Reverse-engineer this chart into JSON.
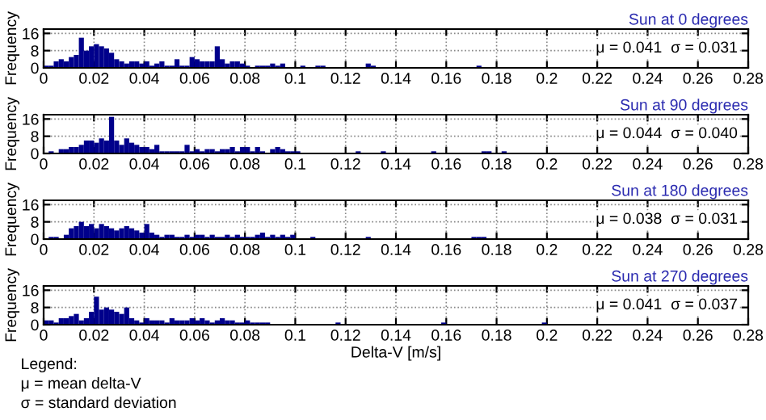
{
  "chart_data": [
    {
      "type": "histogram",
      "title": "Sun at 0 degrees",
      "ylabel": "Frequency",
      "color": "#00008b",
      "bins": [
        0,
        0.002,
        0.004,
        0.006,
        0.008,
        0.01,
        0.012,
        0.014,
        0.016,
        0.018,
        0.02,
        0.022,
        0.024,
        0.026,
        0.028,
        0.03,
        0.032,
        0.034,
        0.036,
        0.038,
        0.04,
        0.042,
        0.044,
        0.046,
        0.048,
        0.05,
        0.052,
        0.054,
        0.056,
        0.058,
        0.06,
        0.062,
        0.064,
        0.066,
        0.068,
        0.07,
        0.072,
        0.074,
        0.076,
        0.078,
        0.08,
        0.082,
        0.084,
        0.086,
        0.088,
        0.09,
        0.092,
        0.094,
        0.096,
        0.098,
        0.1,
        0.102,
        0.104,
        0.106,
        0.108,
        0.11,
        0.112,
        0.114,
        0.116,
        0.118,
        0.12,
        0.122,
        0.124,
        0.126,
        0.128,
        0.13,
        0.132,
        0.134,
        0.136,
        0.138,
        0.14,
        0.142,
        0.144,
        0.146,
        0.148,
        0.15,
        0.152,
        0.154,
        0.156,
        0.158,
        0.16,
        0.162,
        0.164,
        0.166,
        0.168,
        0.17,
        0.172,
        0.174,
        0.176,
        0.178,
        0.18,
        0.182,
        0.184,
        0.186,
        0.188,
        0.19,
        0.192,
        0.194,
        0.196,
        0.198,
        0.2
      ],
      "values": [
        1,
        1,
        3,
        4,
        3,
        5,
        6,
        14,
        8,
        10,
        11,
        10,
        9,
        7,
        4,
        3,
        2,
        3,
        3,
        2,
        3,
        1,
        2,
        3,
        1,
        1,
        4,
        1,
        1,
        5,
        4,
        3,
        3,
        3,
        10,
        4,
        2,
        3,
        3,
        2,
        1,
        0,
        1,
        1,
        1,
        2,
        1,
        2,
        0,
        0,
        0,
        1,
        0,
        0,
        1,
        1,
        0,
        0,
        0,
        0,
        0,
        0,
        0,
        0,
        2,
        1,
        0,
        0,
        0,
        0,
        0,
        0,
        0,
        0,
        0,
        0,
        0,
        0,
        0,
        0,
        0,
        0,
        0,
        0,
        0,
        0,
        1,
        0,
        0,
        0,
        0,
        0,
        0,
        0,
        0,
        0,
        0,
        0,
        0,
        0
      ],
      "xlim": [
        0,
        0.28
      ],
      "ylim": [
        0,
        18
      ],
      "xticks": [
        0,
        0.02,
        0.04,
        0.06,
        0.08,
        0.1,
        0.12,
        0.14,
        0.16,
        0.18,
        0.2,
        0.22,
        0.24,
        0.26,
        0.28
      ],
      "yticks": [
        0,
        8,
        16
      ],
      "grid": true,
      "annotations": [
        "μ = 0.041  σ = 0.031"
      ]
    },
    {
      "type": "histogram",
      "title": "Sun at 90 degrees",
      "ylabel": "Frequency",
      "color": "#00008b",
      "bins": [
        0,
        0.002,
        0.004,
        0.006,
        0.008,
        0.01,
        0.012,
        0.014,
        0.016,
        0.018,
        0.02,
        0.022,
        0.024,
        0.026,
        0.028,
        0.03,
        0.032,
        0.034,
        0.036,
        0.038,
        0.04,
        0.042,
        0.044,
        0.046,
        0.048,
        0.05,
        0.052,
        0.054,
        0.056,
        0.058,
        0.06,
        0.062,
        0.064,
        0.066,
        0.068,
        0.07,
        0.072,
        0.074,
        0.076,
        0.078,
        0.08,
        0.082,
        0.084,
        0.086,
        0.088,
        0.09,
        0.092,
        0.094,
        0.096,
        0.098,
        0.1,
        0.102,
        0.104,
        0.106,
        0.108,
        0.11,
        0.112,
        0.114,
        0.116,
        0.118,
        0.12,
        0.122,
        0.124,
        0.126,
        0.128,
        0.13,
        0.132,
        0.134,
        0.136,
        0.138,
        0.14,
        0.142,
        0.144,
        0.146,
        0.148,
        0.15,
        0.152,
        0.154,
        0.156,
        0.158,
        0.16,
        0.162,
        0.164,
        0.166,
        0.168,
        0.17,
        0.172,
        0.174,
        0.176,
        0.178,
        0.18,
        0.182,
        0.184,
        0.186,
        0.188,
        0.19,
        0.192,
        0.194,
        0.196,
        0.198,
        0.2
      ],
      "values": [
        0,
        1,
        0,
        2,
        2,
        3,
        3,
        4,
        6,
        6,
        5,
        7,
        6,
        17,
        6,
        4,
        7,
        5,
        4,
        3,
        3,
        2,
        4,
        1,
        1,
        1,
        1,
        1,
        4,
        1,
        2,
        1,
        2,
        2,
        1,
        2,
        2,
        3,
        1,
        3,
        3,
        1,
        3,
        1,
        0,
        2,
        3,
        2,
        1,
        1,
        1,
        0,
        0,
        0,
        0,
        0,
        0,
        0,
        0,
        0,
        0,
        0,
        1,
        0,
        0,
        0,
        0,
        1,
        0,
        0,
        0,
        0,
        0,
        0,
        0,
        0,
        0,
        1,
        0,
        0,
        0,
        0,
        0,
        0,
        0,
        0,
        0,
        1,
        1,
        0,
        0,
        1,
        0,
        0,
        0,
        0,
        0,
        0,
        0,
        0
      ],
      "xlim": [
        0,
        0.28
      ],
      "ylim": [
        0,
        18
      ],
      "xticks": [
        0,
        0.02,
        0.04,
        0.06,
        0.08,
        0.1,
        0.12,
        0.14,
        0.16,
        0.18,
        0.2,
        0.22,
        0.24,
        0.26,
        0.28
      ],
      "yticks": [
        0,
        8,
        16
      ],
      "grid": true,
      "annotations": [
        "μ = 0.044  σ = 0.040"
      ]
    },
    {
      "type": "histogram",
      "title": "Sun at 180 degrees",
      "ylabel": "Frequency",
      "color": "#00008b",
      "bins": [
        0,
        0.002,
        0.004,
        0.006,
        0.008,
        0.01,
        0.012,
        0.014,
        0.016,
        0.018,
        0.02,
        0.022,
        0.024,
        0.026,
        0.028,
        0.03,
        0.032,
        0.034,
        0.036,
        0.038,
        0.04,
        0.042,
        0.044,
        0.046,
        0.048,
        0.05,
        0.052,
        0.054,
        0.056,
        0.058,
        0.06,
        0.062,
        0.064,
        0.066,
        0.068,
        0.07,
        0.072,
        0.074,
        0.076,
        0.078,
        0.08,
        0.082,
        0.084,
        0.086,
        0.088,
        0.09,
        0.092,
        0.094,
        0.096,
        0.098,
        0.1,
        0.102,
        0.104,
        0.106,
        0.108,
        0.11,
        0.112,
        0.114,
        0.116,
        0.118,
        0.12,
        0.122,
        0.124,
        0.126,
        0.128,
        0.13,
        0.132,
        0.134,
        0.136,
        0.138,
        0.14,
        0.142,
        0.144,
        0.146,
        0.148,
        0.15,
        0.152,
        0.154,
        0.156,
        0.158,
        0.16,
        0.162,
        0.164,
        0.166,
        0.168,
        0.17,
        0.172,
        0.174,
        0.176,
        0.178,
        0.18,
        0.182,
        0.184,
        0.186,
        0.188,
        0.19,
        0.192,
        0.194,
        0.196,
        0.198,
        0.2
      ],
      "values": [
        0,
        1,
        1,
        0,
        2,
        5,
        6,
        8,
        6,
        7,
        5,
        7,
        6,
        5,
        4,
        5,
        6,
        5,
        4,
        3,
        7,
        3,
        2,
        1,
        2,
        2,
        1,
        1,
        2,
        1,
        2,
        2,
        1,
        2,
        1,
        1,
        2,
        1,
        2,
        1,
        1,
        1,
        2,
        3,
        1,
        2,
        1,
        2,
        1,
        2,
        0,
        0,
        0,
        1,
        0,
        0,
        0,
        0,
        0,
        0,
        0,
        0,
        0,
        0,
        1,
        0,
        0,
        0,
        0,
        0,
        0,
        0,
        0,
        0,
        0,
        0,
        0,
        0,
        0,
        0,
        0,
        0,
        0,
        0,
        0,
        1,
        1,
        1,
        0,
        0,
        0,
        0,
        0,
        0,
        0,
        0,
        0,
        0,
        0,
        0
      ],
      "xlim": [
        0,
        0.28
      ],
      "ylim": [
        0,
        18
      ],
      "xticks": [
        0,
        0.02,
        0.04,
        0.06,
        0.08,
        0.1,
        0.12,
        0.14,
        0.16,
        0.18,
        0.2,
        0.22,
        0.24,
        0.26,
        0.28
      ],
      "yticks": [
        0,
        8,
        16
      ],
      "grid": true,
      "annotations": [
        "μ = 0.038  σ = 0.031"
      ]
    },
    {
      "type": "histogram",
      "title": "Sun at 270 degrees",
      "xlabel": "Delta-V [m/s]",
      "ylabel": "Frequency",
      "color": "#00008b",
      "bins": [
        0,
        0.002,
        0.004,
        0.006,
        0.008,
        0.01,
        0.012,
        0.014,
        0.016,
        0.018,
        0.02,
        0.022,
        0.024,
        0.026,
        0.028,
        0.03,
        0.032,
        0.034,
        0.036,
        0.038,
        0.04,
        0.042,
        0.044,
        0.046,
        0.048,
        0.05,
        0.052,
        0.054,
        0.056,
        0.058,
        0.06,
        0.062,
        0.064,
        0.066,
        0.068,
        0.07,
        0.072,
        0.074,
        0.076,
        0.078,
        0.08,
        0.082,
        0.084,
        0.086,
        0.088,
        0.09,
        0.092,
        0.094,
        0.096,
        0.098,
        0.1,
        0.102,
        0.104,
        0.106,
        0.108,
        0.11,
        0.112,
        0.114,
        0.116,
        0.118,
        0.12,
        0.122,
        0.124,
        0.126,
        0.128,
        0.13,
        0.132,
        0.134,
        0.136,
        0.138,
        0.14,
        0.142,
        0.144,
        0.146,
        0.148,
        0.15,
        0.152,
        0.154,
        0.156,
        0.158,
        0.16,
        0.162,
        0.164,
        0.166,
        0.168,
        0.17,
        0.172,
        0.174,
        0.176,
        0.178,
        0.18,
        0.182,
        0.184,
        0.186,
        0.188,
        0.19,
        0.192,
        0.194,
        0.196,
        0.198,
        0.2
      ],
      "values": [
        2,
        2,
        1,
        3,
        3,
        4,
        5,
        2,
        3,
        6,
        13,
        7,
        8,
        7,
        6,
        5,
        8,
        3,
        2,
        1,
        3,
        2,
        2,
        2,
        1,
        3,
        2,
        2,
        2,
        3,
        2,
        3,
        2,
        1,
        2,
        3,
        2,
        2,
        1,
        1,
        2,
        1,
        1,
        1,
        1,
        0,
        0,
        0,
        0,
        0,
        0,
        0,
        0,
        0,
        0,
        0,
        0,
        0,
        1,
        0,
        0,
        0,
        0,
        0,
        0,
        0,
        0,
        0,
        0,
        0,
        0,
        0,
        0,
        0,
        0,
        0,
        0,
        0,
        0,
        1,
        0,
        0,
        0,
        0,
        0,
        0,
        0,
        0,
        0,
        0,
        0,
        0,
        0,
        0,
        0,
        0,
        0,
        0,
        0,
        1
      ],
      "xlim": [
        0,
        0.28
      ],
      "ylim": [
        0,
        18
      ],
      "xticks": [
        0,
        0.02,
        0.04,
        0.06,
        0.08,
        0.1,
        0.12,
        0.14,
        0.16,
        0.18,
        0.2,
        0.22,
        0.24,
        0.26,
        0.28
      ],
      "yticks": [
        0,
        8,
        16
      ],
      "grid": true,
      "annotations": [
        "μ = 0.041  σ = 0.037",
        "Legend:",
        "μ = mean delta-V",
        "σ = standard deviation"
      ]
    }
  ]
}
